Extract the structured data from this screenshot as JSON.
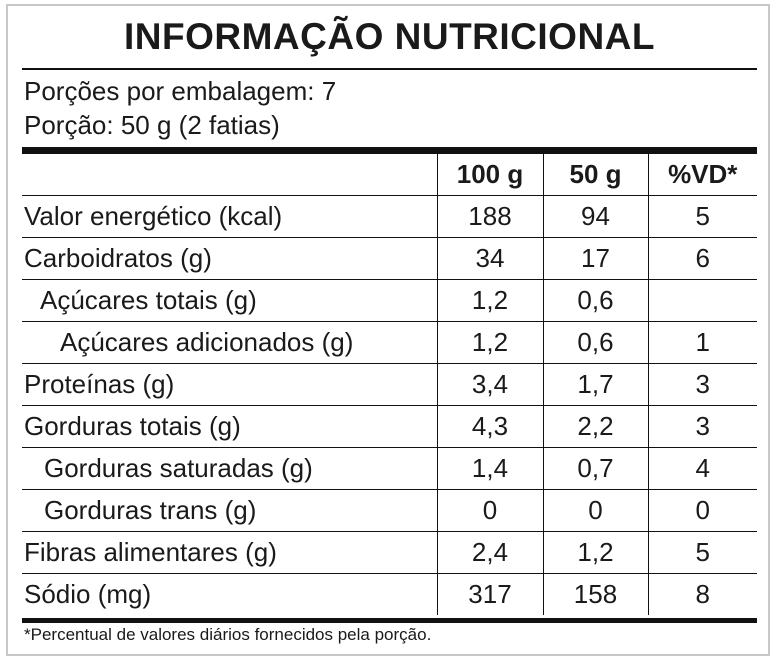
{
  "header": {
    "title": "INFORMAÇÃO NUTRICIONAL",
    "servings_per_package": "Porções por embalagem: 7",
    "serving_size": "Porção: 50 g (2 fatias)"
  },
  "table": {
    "columns": [
      "100 g",
      "50 g",
      "%VD*"
    ],
    "rows": [
      [
        "Valor energético (kcal)",
        "188",
        "94",
        "5"
      ],
      [
        "Carboidratos (g)",
        "34",
        "17",
        "6"
      ],
      [
        "Açúcares totais (g)",
        "1,2",
        "0,6",
        null
      ],
      [
        "Açúcares adicionados (g)",
        "1,2",
        "0,6",
        "1"
      ],
      [
        "Proteínas (g)",
        "3,4",
        "1,7",
        "3"
      ],
      [
        "Gorduras totais (g)",
        "4,3",
        "2,2",
        "3"
      ],
      [
        "Gorduras saturadas (g)",
        "1,4",
        "0,7",
        "4"
      ],
      [
        "Gorduras trans (g)",
        "0",
        "0",
        "0"
      ],
      [
        "Fibras alimentares (g)",
        "2,4",
        "1,2",
        "5"
      ],
      [
        "Sódio (mg)",
        "317",
        "158",
        "8"
      ]
    ]
  },
  "footnote": "*Percentual de valores diários fornecidos pela porção."
}
